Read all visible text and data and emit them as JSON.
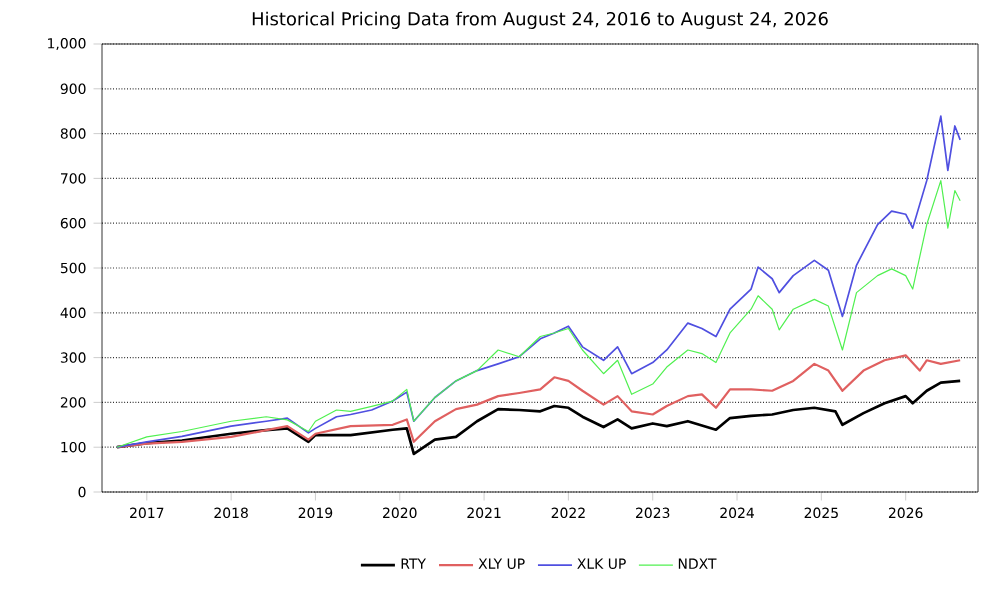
{
  "chart_data": {
    "type": "line",
    "title": "Historical Pricing Data from August 24, 2016 to August 24, 2026",
    "xlim": [
      "2016-06-20",
      "2026-11-10"
    ],
    "xticks": [
      "2017",
      "2018",
      "2019",
      "2020",
      "2021",
      "2022",
      "2023",
      "2024",
      "2025",
      "2026"
    ],
    "ylim": [
      0,
      1000
    ],
    "yticks": [
      0,
      100,
      200,
      300,
      400,
      500,
      600,
      700,
      800,
      900,
      {
        "value": 1000,
        "label": "1,000"
      }
    ],
    "grid": "y",
    "legend": "bottom",
    "series": [
      {
        "name": "RTY",
        "color": "#000000",
        "x": [
          "2016-08-24",
          "2017-01",
          "2017-06",
          "2018-01",
          "2018-06",
          "2018-09",
          "2018-12",
          "2019-01",
          "2019-06",
          "2019-12",
          "2020-02",
          "2020-03",
          "2020-06",
          "2020-09",
          "2020-12",
          "2021-03",
          "2021-06",
          "2021-09",
          "2021-11",
          "2022-01",
          "2022-03",
          "2022-06",
          "2022-08",
          "2022-10",
          "2023-01",
          "2023-03",
          "2023-06",
          "2023-10",
          "2023-12",
          "2024-03",
          "2024-06",
          "2024-09",
          "2024-12",
          "2025-03",
          "2025-04",
          "2025-07",
          "2025-10",
          "2026-01",
          "2026-02",
          "2026-04",
          "2026-06",
          "2026-08-24"
        ],
        "values": [
          100,
          109,
          115,
          130,
          138,
          142,
          112,
          127,
          127,
          139,
          142,
          85,
          117,
          123,
          158,
          185,
          183,
          180,
          192,
          188,
          168,
          145,
          162,
          142,
          153,
          147,
          158,
          139,
          165,
          170,
          173,
          183,
          188,
          180,
          150,
          176,
          198,
          214,
          198,
          226,
          244,
          248
        ]
      },
      {
        "name": "XLY UP",
        "color": "#e06060",
        "x": [
          "2016-08-24",
          "2017-01",
          "2017-06",
          "2018-01",
          "2018-06",
          "2018-09",
          "2018-12",
          "2019-01",
          "2019-06",
          "2019-12",
          "2020-02",
          "2020-03",
          "2020-06",
          "2020-09",
          "2020-12",
          "2021-03",
          "2021-06",
          "2021-09",
          "2021-11",
          "2022-01",
          "2022-03",
          "2022-06",
          "2022-08",
          "2022-10",
          "2023-01",
          "2023-03",
          "2023-06",
          "2023-08",
          "2023-10",
          "2023-12",
          "2024-03",
          "2024-06",
          "2024-09",
          "2024-12",
          "2025-02",
          "2025-04",
          "2025-07",
          "2025-10",
          "2026-01",
          "2026-03",
          "2026-04",
          "2026-06",
          "2026-08-24"
        ],
        "values": [
          100,
          108,
          112,
          123,
          138,
          147,
          117,
          130,
          147,
          150,
          162,
          112,
          158,
          185,
          195,
          214,
          221,
          229,
          256,
          248,
          226,
          195,
          214,
          180,
          173,
          192,
          214,
          218,
          188,
          229,
          229,
          226,
          248,
          286,
          271,
          226,
          271,
          294,
          305,
          271,
          294,
          286,
          294
        ]
      },
      {
        "name": "XLK UP",
        "color": "#4f4fe0",
        "x": [
          "2016-08-24",
          "2017-01",
          "2017-06",
          "2018-01",
          "2018-06",
          "2018-09",
          "2018-12",
          "2019-01",
          "2019-04",
          "2019-06",
          "2019-09",
          "2019-12",
          "2020-02",
          "2020-03",
          "2020-06",
          "2020-09",
          "2020-12",
          "2021-03",
          "2021-06",
          "2021-09",
          "2021-11",
          "2022-01",
          "2022-03",
          "2022-06",
          "2022-08",
          "2022-10",
          "2023-01",
          "2023-03",
          "2023-06",
          "2023-08",
          "2023-10",
          "2023-12",
          "2024-03",
          "2024-04",
          "2024-06",
          "2024-07",
          "2024-09",
          "2024-12",
          "2025-02",
          "2025-04",
          "2025-06",
          "2025-09",
          "2025-11",
          "2026-01",
          "2026-02",
          "2026-04",
          "2026-06",
          "2026-07",
          "2026-08",
          "2026-08-24"
        ],
        "values": [
          100,
          112,
          124,
          147,
          158,
          165,
          132,
          142,
          168,
          173,
          183,
          203,
          223,
          158,
          211,
          248,
          271,
          286,
          302,
          342,
          355,
          370,
          324,
          294,
          324,
          264,
          289,
          317,
          377,
          365,
          347,
          408,
          453,
          502,
          476,
          445,
          483,
          517,
          495,
          392,
          506,
          597,
          627,
          620,
          589,
          695,
          839,
          718,
          817,
          786
        ]
      },
      {
        "name": "NDXT",
        "color": "#50f050",
        "x": [
          "2016-08-24",
          "2017-01",
          "2017-06",
          "2018-01",
          "2018-06",
          "2018-09",
          "2018-12",
          "2019-01",
          "2019-04",
          "2019-06",
          "2019-09",
          "2019-12",
          "2020-02",
          "2020-03",
          "2020-06",
          "2020-09",
          "2020-12",
          "2021-03",
          "2021-06",
          "2021-09",
          "2021-11",
          "2022-01",
          "2022-03",
          "2022-06",
          "2022-08",
          "2022-10",
          "2023-01",
          "2023-03",
          "2023-06",
          "2023-08",
          "2023-10",
          "2023-12",
          "2024-03",
          "2024-04",
          "2024-06",
          "2024-07",
          "2024-09",
          "2024-12",
          "2025-02",
          "2025-04",
          "2025-06",
          "2025-09",
          "2025-11",
          "2026-01",
          "2026-02",
          "2026-04",
          "2026-06",
          "2026-07",
          "2026-08",
          "2026-08-24"
        ],
        "values": [
          100,
          123,
          135,
          158,
          168,
          161,
          135,
          158,
          183,
          180,
          191,
          203,
          229,
          158,
          211,
          248,
          271,
          317,
          302,
          347,
          355,
          365,
          317,
          264,
          294,
          218,
          241,
          279,
          317,
          309,
          289,
          355,
          408,
          438,
          408,
          362,
          408,
          430,
          415,
          317,
          445,
          483,
          498,
          483,
          453,
          597,
          695,
          589,
          673,
          650
        ]
      }
    ]
  }
}
